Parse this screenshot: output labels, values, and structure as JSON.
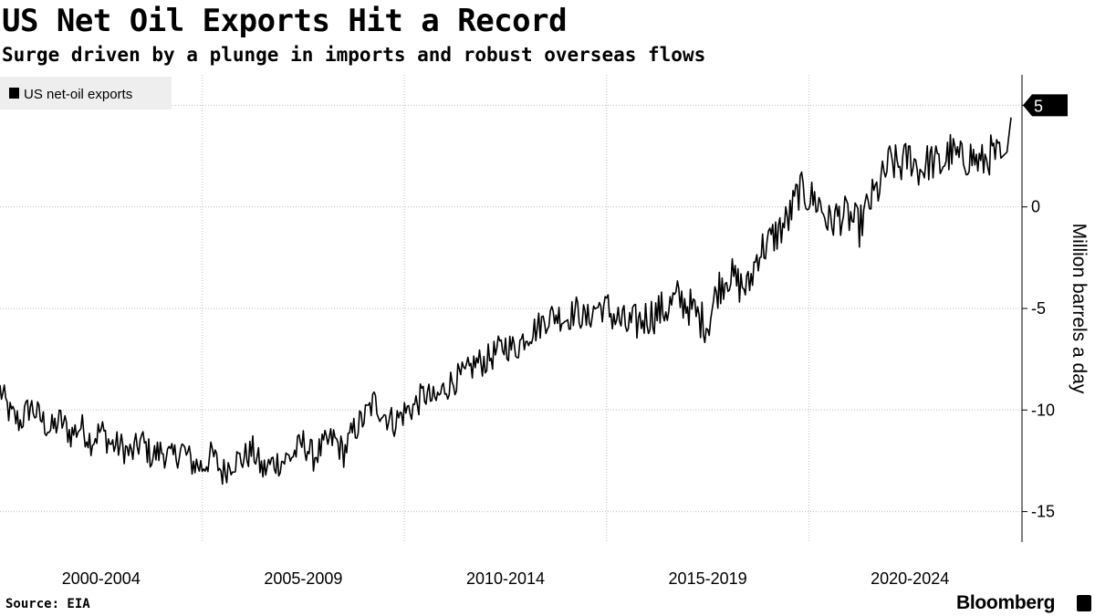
{
  "header": {
    "title": "US Net Oil Exports Hit a Record",
    "subtitle": "Surge driven by a plunge in imports and robust overseas flows"
  },
  "footer": {
    "source": "Source: EIA",
    "brand": "Bloomberg"
  },
  "colors": {
    "line": "#000000",
    "grid": "#bdbdbd",
    "legend_bg": "#eeeeee",
    "last_value_bg": "#000000"
  },
  "chart_data": {
    "type": "line",
    "title": "US Net Oil Exports Hit a Record",
    "subtitle": "Surge driven by a plunge in imports and robust overseas flows",
    "xlabel": "",
    "ylabel": "Million barrels a day",
    "x_range": [
      2000.0,
      2025.0
    ],
    "x_categories": [
      "2000-2004",
      "2005-2009",
      "2010-2014",
      "2015-2019",
      "2020-2024"
    ],
    "x_category_spans": [
      [
        2000,
        2005
      ],
      [
        2005,
        2010
      ],
      [
        2010,
        2015
      ],
      [
        2015,
        2020
      ],
      [
        2020,
        2025
      ]
    ],
    "ylim": [
      -16.5,
      6.5
    ],
    "yticks": [
      5,
      0,
      -5,
      -10,
      -15
    ],
    "grid": true,
    "legend": {
      "placement": "top-left",
      "entries": [
        "US net-oil exports"
      ]
    },
    "last_value_label": "5",
    "series": [
      {
        "name": "US net-oil exports",
        "x": [
          2000.0,
          2000.25,
          2000.5,
          2000.75,
          2001.0,
          2001.25,
          2001.5,
          2001.75,
          2002.0,
          2002.25,
          2002.5,
          2002.75,
          2003.0,
          2003.25,
          2003.5,
          2003.75,
          2004.0,
          2004.25,
          2004.5,
          2004.75,
          2005.0,
          2005.25,
          2005.5,
          2005.75,
          2006.0,
          2006.25,
          2006.5,
          2006.75,
          2007.0,
          2007.25,
          2007.5,
          2007.75,
          2008.0,
          2008.25,
          2008.5,
          2008.75,
          2009.0,
          2009.25,
          2009.5,
          2009.75,
          2010.0,
          2010.25,
          2010.5,
          2010.75,
          2011.0,
          2011.25,
          2011.5,
          2011.75,
          2012.0,
          2012.25,
          2012.5,
          2012.75,
          2013.0,
          2013.25,
          2013.5,
          2013.75,
          2014.0,
          2014.25,
          2014.5,
          2014.75,
          2015.0,
          2015.25,
          2015.5,
          2015.75,
          2016.0,
          2016.25,
          2016.5,
          2016.75,
          2017.0,
          2017.25,
          2017.5,
          2017.75,
          2018.0,
          2018.25,
          2018.5,
          2018.75,
          2019.0,
          2019.25,
          2019.5,
          2019.75,
          2020.0,
          2020.25,
          2020.5,
          2020.75,
          2021.0,
          2021.25,
          2021.5,
          2021.75,
          2022.0,
          2022.25,
          2022.5,
          2022.75,
          2023.0,
          2023.25,
          2023.5,
          2023.75,
          2024.0,
          2024.25,
          2024.5,
          2024.75,
          2024.9,
          2025.0
        ],
        "values": [
          -9.0,
          -10.2,
          -10.6,
          -9.8,
          -10.4,
          -11.0,
          -10.5,
          -11.2,
          -10.8,
          -11.5,
          -11.0,
          -11.7,
          -11.8,
          -12.2,
          -11.5,
          -12.3,
          -12.0,
          -12.4,
          -11.9,
          -12.6,
          -12.8,
          -12.2,
          -13.1,
          -12.5,
          -12.4,
          -12.0,
          -13.0,
          -12.6,
          -12.5,
          -12.2,
          -11.6,
          -12.3,
          -11.8,
          -11.4,
          -12.1,
          -11.0,
          -10.4,
          -9.6,
          -10.2,
          -10.6,
          -10.1,
          -9.8,
          -9.2,
          -9.6,
          -8.9,
          -8.5,
          -8.3,
          -7.7,
          -7.6,
          -7.2,
          -6.8,
          -7.0,
          -6.3,
          -6.0,
          -5.5,
          -5.3,
          -5.5,
          -5.1,
          -5.6,
          -4.9,
          -5.0,
          -5.5,
          -5.9,
          -5.7,
          -5.4,
          -5.2,
          -5.0,
          -4.5,
          -4.8,
          -5.4,
          -5.8,
          -4.0,
          -3.3,
          -3.8,
          -4.0,
          -2.2,
          -1.8,
          -1.2,
          -0.6,
          0.8,
          0.5,
          0.2,
          -0.8,
          -0.4,
          -0.5,
          -1.0,
          0.2,
          1.0,
          2.2,
          2.0,
          2.5,
          1.8,
          2.3,
          2.0,
          2.7,
          2.3,
          2.5,
          2.1,
          2.6,
          2.4,
          2.7,
          4.4
        ]
      }
    ]
  }
}
